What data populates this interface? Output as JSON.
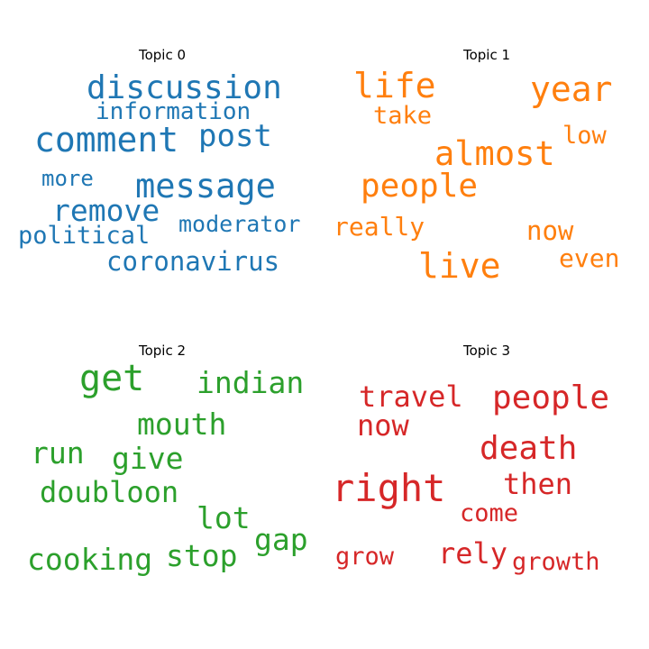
{
  "topics": [
    {
      "title": "Topic 0",
      "color": "#1f77b4",
      "words": [
        "discussion",
        "information",
        "comment",
        "post",
        "more",
        "message",
        "remove",
        "moderator",
        "political",
        "coronavirus"
      ]
    },
    {
      "title": "Topic 1",
      "color": "#ff7f0e",
      "words": [
        "life",
        "year",
        "take",
        "low",
        "almost",
        "people",
        "really",
        "now",
        "even",
        "live"
      ]
    },
    {
      "title": "Topic 2",
      "color": "#2ca02c",
      "words": [
        "get",
        "indian",
        "mouth",
        "run",
        "give",
        "doubloon",
        "lot",
        "gap",
        "cooking",
        "stop"
      ]
    },
    {
      "title": "Topic 3",
      "color": "#d62728",
      "words": [
        "travel",
        "people",
        "now",
        "death",
        "right",
        "then",
        "come",
        "grow",
        "rely",
        "growth"
      ]
    }
  ]
}
